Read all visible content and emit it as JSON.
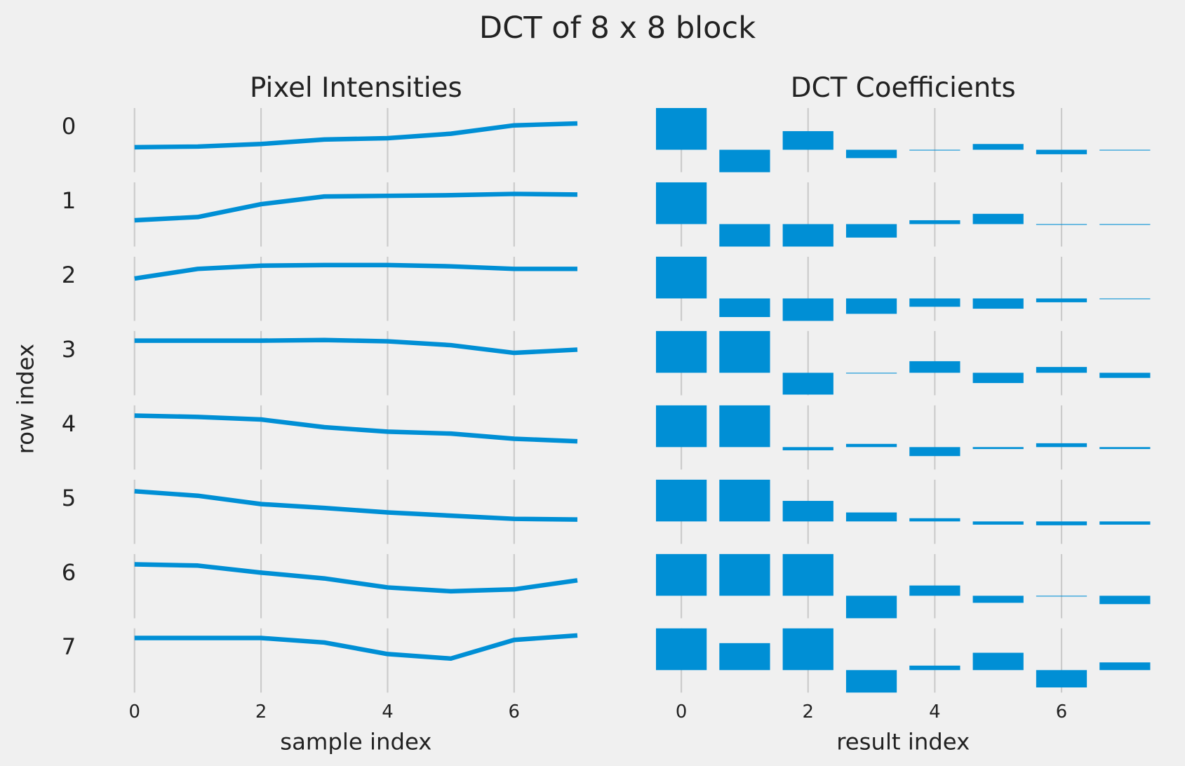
{
  "chart_data": {
    "title": "DCT of 8 x 8 block",
    "color": "#008fd5",
    "background": "#f0f0f0",
    "grid_color": "#cbcbcb",
    "row_label": "row index",
    "row_tick_labels": [
      "0",
      "1",
      "2",
      "3",
      "4",
      "5",
      "6",
      "7"
    ],
    "panels": [
      {
        "type": "line",
        "title": "Pixel Intensities",
        "xlabel": "sample index",
        "x": [
          0,
          1,
          2,
          3,
          4,
          5,
          6,
          7
        ],
        "xlim": [
          0,
          7
        ],
        "xticks": [
          0,
          2,
          4,
          6
        ],
        "ylim": [
          0,
          100
        ],
        "grid": "vertical",
        "rows": [
          [
            39,
            40,
            44,
            51,
            53,
            60,
            73,
            76
          ],
          [
            41,
            46,
            66,
            78,
            79,
            80,
            82,
            81
          ],
          [
            66,
            81,
            86,
            87,
            87,
            85,
            81,
            81
          ],
          [
            85,
            85,
            85,
            86,
            84,
            78,
            66,
            71
          ],
          [
            84,
            82,
            78,
            66,
            59,
            56,
            48,
            44
          ],
          [
            82,
            75,
            62,
            56,
            49,
            44,
            39,
            38
          ],
          [
            84,
            82,
            71,
            62,
            48,
            42,
            45,
            59
          ],
          [
            85,
            85,
            85,
            78,
            60,
            53,
            82,
            89
          ]
        ]
      },
      {
        "type": "bar",
        "title": "DCT Coefficients",
        "xlabel": "result index",
        "x": [
          0,
          1,
          2,
          3,
          4,
          5,
          6,
          7
        ],
        "xlim": [
          -0.4,
          7.4
        ],
        "xticks": [
          0,
          2,
          4,
          6
        ],
        "ylim": [
          -35,
          65
        ],
        "grid": "vertical",
        "rows": [
          [
            80,
            -37,
            29,
            -13,
            -0.5,
            9,
            -7,
            0
          ],
          [
            80,
            -36,
            -36,
            -21,
            6,
            16,
            -1,
            -1
          ],
          [
            80,
            -29,
            -36,
            -24,
            -13,
            -16,
            -6,
            -0.5
          ],
          [
            80,
            80,
            -34,
            -0.5,
            18,
            -16,
            9,
            -8
          ],
          [
            80,
            80,
            -5,
            5,
            -14,
            -3,
            6,
            -3
          ],
          [
            80,
            80,
            32,
            14,
            5,
            -5,
            -6,
            -5
          ],
          [
            80,
            80,
            80,
            -37,
            16,
            -11,
            -1,
            -13
          ],
          [
            80,
            42,
            80,
            -37,
            7,
            27,
            -27,
            12
          ]
        ]
      }
    ]
  }
}
